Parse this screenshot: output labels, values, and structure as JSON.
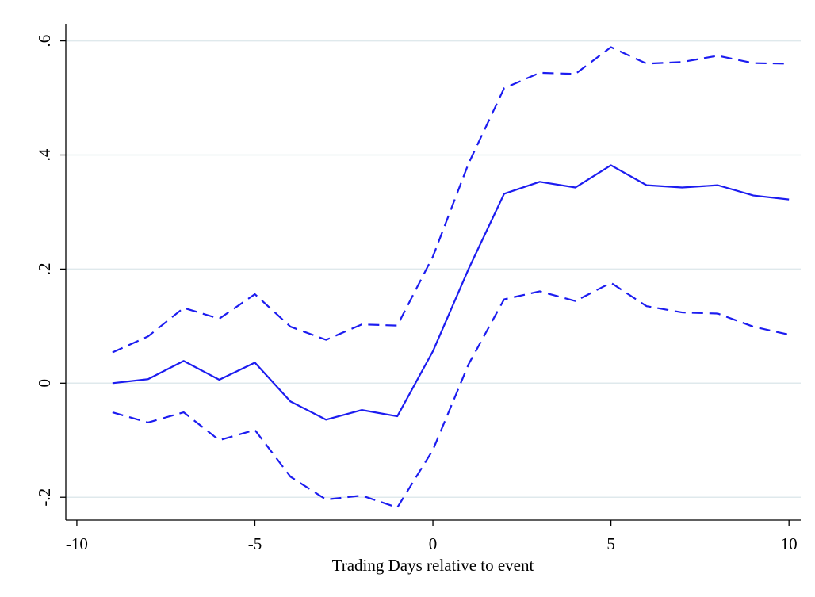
{
  "chart_data": {
    "type": "line",
    "x_label": "Trading Days relative to event",
    "x": [
      -9,
      -8,
      -7,
      -6,
      -5,
      -4,
      -3,
      -2,
      -1,
      0,
      1,
      2,
      3,
      4,
      5,
      6,
      7,
      8,
      9,
      10
    ],
    "series": [
      {
        "color": "#1c1cf0",
        "dashed": false,
        "values": [
          0,
          0.007,
          0.039,
          0.006,
          0.036,
          -0.032,
          -0.064,
          -0.047,
          -0.058,
          0.056,
          0.2,
          0.332,
          0.353,
          0.343,
          0.382,
          0.347,
          0.343,
          0.347,
          0.329,
          0.322
        ]
      },
      {
        "color": "#1c1cf0",
        "dashed": true,
        "values": [
          0.054,
          0.082,
          0.132,
          0.113,
          0.156,
          0.099,
          0.076,
          0.103,
          0.101,
          0.222,
          0.385,
          0.517,
          0.544,
          0.542,
          0.589,
          0.56,
          0.563,
          0.574,
          0.561,
          0.56
        ]
      },
      {
        "color": "#1c1cf0",
        "dashed": true,
        "values": [
          -0.051,
          -0.069,
          -0.051,
          -0.1,
          -0.082,
          -0.164,
          -0.204,
          -0.197,
          -0.218,
          -0.117,
          0.033,
          0.147,
          0.161,
          0.144,
          0.176,
          0.135,
          0.124,
          0.122,
          0.099,
          0.085
        ]
      }
    ],
    "xlim": [
      -10.31,
      10.33
    ],
    "ylim": [
      -0.24,
      0.63
    ],
    "xticks": [
      -10,
      -5,
      0,
      5,
      10
    ],
    "yticks": [
      {
        "value": -0.2,
        "label": "-.2"
      },
      0,
      {
        "value": 0.2,
        "label": ".2"
      },
      {
        "value": 0.4,
        "label": ".4"
      },
      {
        "value": 0.6,
        "label": ".6"
      }
    ],
    "grid": true
  }
}
